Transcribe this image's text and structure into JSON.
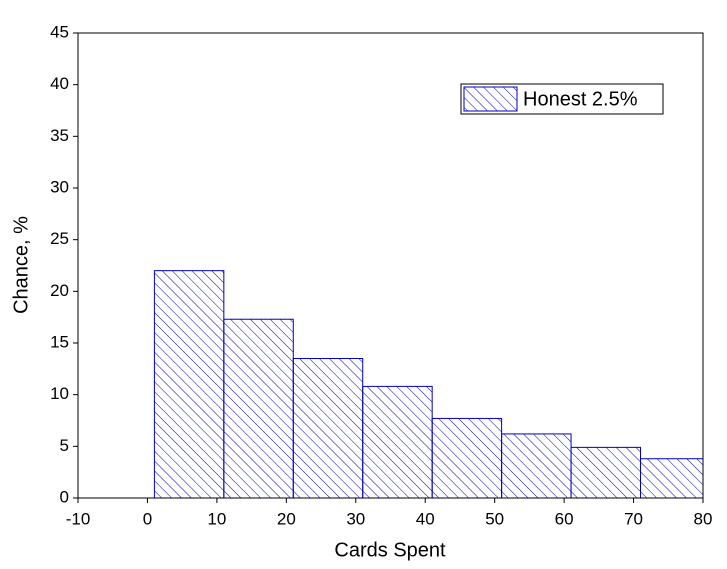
{
  "chart_data": {
    "type": "histogram",
    "xlabel": "Cards Spent",
    "ylabel": "Chance, %",
    "bins": [
      1,
      11,
      21,
      31,
      41,
      51,
      61,
      71,
      81
    ],
    "series": [
      {
        "name": "Honest 2.5%",
        "color": "#0000c0",
        "values": [
          22,
          17.3,
          13.5,
          10.8,
          7.7,
          6.2,
          4.9,
          3.8
        ]
      }
    ],
    "xlim": [
      -10,
      80
    ],
    "xticks": [
      -10,
      0,
      10,
      20,
      30,
      40,
      50,
      60,
      70,
      80
    ],
    "ylim": [
      0,
      45
    ],
    "yticks": [
      0,
      5,
      10,
      15,
      20,
      25,
      30,
      35,
      40,
      45
    ],
    "legend": "upper right"
  }
}
